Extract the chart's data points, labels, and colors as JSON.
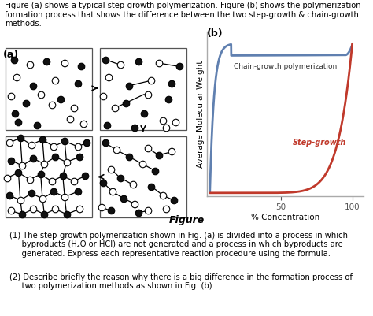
{
  "panel_b_label": "(b)",
  "panel_a_label": "(a)",
  "chain_label": "Chain-growth polymerization",
  "step_label": "Step-growth",
  "xlabel": "% Concentration",
  "ylabel": "Average Molecular Weight",
  "xticks": [
    50,
    100
  ],
  "chain_color": "#6080b0",
  "step_color": "#c0392b",
  "axis_color": "#aaaaaa",
  "background_color": "#ffffff",
  "header": "Figure (a) shows a typical step-growth polymerization. Figure (b) shows the polymerization\nformation process that shows the difference between the two step-growth & chain-growth\nmethods.",
  "fig_label": "Figure",
  "note_1a": "(1) The step-growth polymerization shown in Fig. (a) is divided into a process in which",
  "note_1b": "byproducts (H₂O or HCl) are not generated and a process in which byproducts are",
  "note_1c": "generated. Express each representative reaction procedure using the formula. ",
  "note_2a": "(2) Describe briefly the reason why there is a big difference in the formation process of",
  "note_2b": "two polymerization methods as shown in Fig. (b)."
}
